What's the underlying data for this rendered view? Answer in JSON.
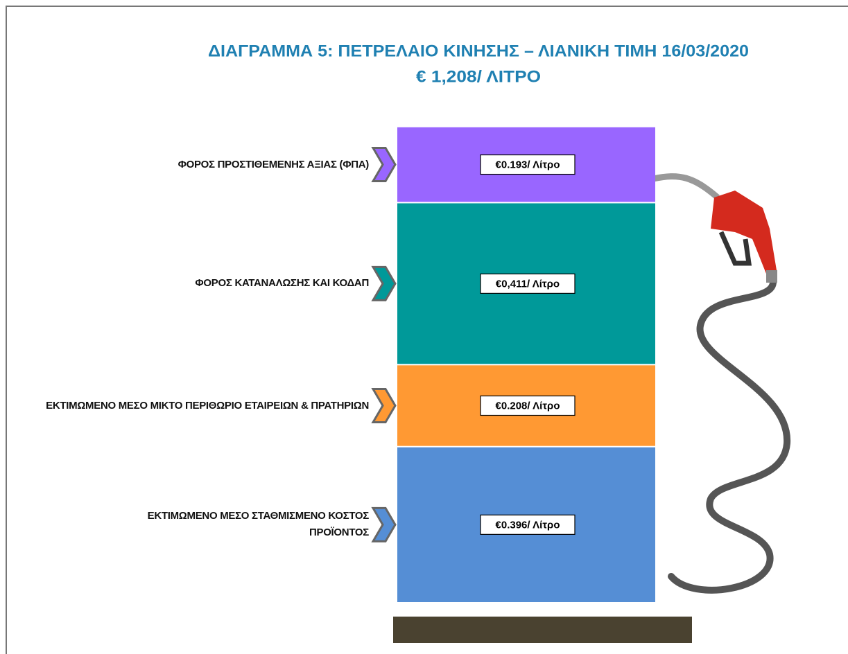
{
  "chart_data": {
    "type": "stacked_bar",
    "title": "ΔΙΑΓΡΑΜΜΑ 5: ΠΕΤΡΕΛΑΙΟ ΚΙΝΗΣΗΣ – ΛΙΑΝΙΚΗ ΤΙΜΗ 16/03/2020",
    "subtitle": "€ 1,208/ ΛΙΤΡΟ",
    "series": [
      {
        "name": "ΦΟΡΟΣ ΠΡΟΣΤΙΘΕΜΕΝΗΣ ΑΞΙΑΣ (ΦΠΑ)",
        "color": "#9966ff",
        "values": [
          0.193
        ],
        "value_labels": [
          "€0.193/ Λίτρο"
        ]
      },
      {
        "name": "ΦΟΡΟΣ ΚΑΤΑΝΑΛΩΣΗΣ  ΚΑΙ ΚΟΔΑΠ",
        "color": "#009999",
        "values": [
          0.411
        ],
        "value_labels": [
          "€0,411/ Λίτρο"
        ]
      },
      {
        "name": "ΕΚΤΙΜΩΜΕΝΟ  ΜΕΣΟ ΜΙΚΤΟ ΠΕΡΙΘΩΡΙΟ ΕΤΑΙΡΕΙΩΝ & ΠΡΑΤΗΡΙΩΝ",
        "color": "#ff9933",
        "values": [
          0.208
        ],
        "value_labels": [
          "€0.208/ Λίτρο"
        ]
      },
      {
        "name": "ΕΚΤΙΜΩΜΕΝΟ  ΜΕΣΟ ΣΤΑΘΜΙΣΜΕΝΟ ΚΟΣΤΟΣ ΠΡΟΪΟΝΤΟΣ",
        "color": "#558ed5",
        "values": [
          0.396
        ],
        "value_labels": [
          "€0.396/ Λίτρο"
        ]
      }
    ]
  }
}
